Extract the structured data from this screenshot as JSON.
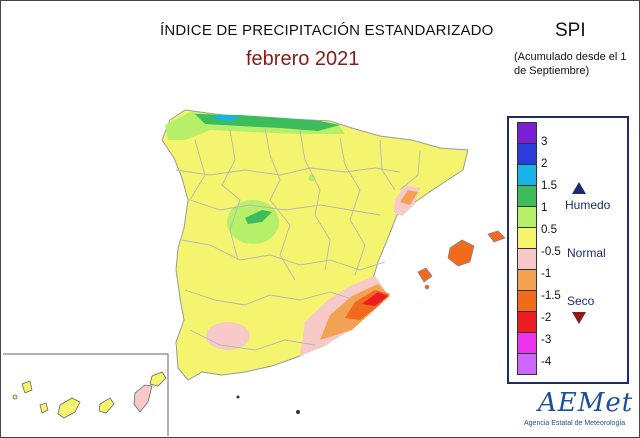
{
  "header": {
    "title": "ÍNDICE DE PRECIPITACIÓN ESTANDARIZADO",
    "period": "febrero 2021",
    "index_label": "SPI",
    "accumulation_note": "(Acumulado desde el 1 de Septiembre)"
  },
  "legend": {
    "ticks": [
      "3",
      "2",
      "1.5",
      "1",
      "0.5",
      "-0.5",
      "-1",
      "-1.5",
      "-2",
      "-3",
      "-4"
    ],
    "colors": [
      "#7b1fd6",
      "#2b3bdc",
      "#16b4e8",
      "#3cbc5a",
      "#b6ef6a",
      "#f4f46e",
      "#f7c9c9",
      "#f3a254",
      "#f26a1c",
      "#ec1c24",
      "#ee33ee",
      "#cc66ff"
    ],
    "categories": {
      "wet": "Humedo",
      "normal": "Normal",
      "dry": "Seco"
    }
  },
  "logo": {
    "name": "AEMet",
    "agency": "Agencia Estatal de Meteorología"
  },
  "map_colors": {
    "border": "#b8b8b8",
    "normal": "#f4f46e",
    "wet_light": "#b6ef6a",
    "wet": "#3cbc5a",
    "wet_strong": "#16b4e8",
    "dry_light": "#f7c9c9",
    "dry": "#f3a254",
    "dry_strong": "#f26a1c",
    "very_dry": "#ec1c24"
  }
}
